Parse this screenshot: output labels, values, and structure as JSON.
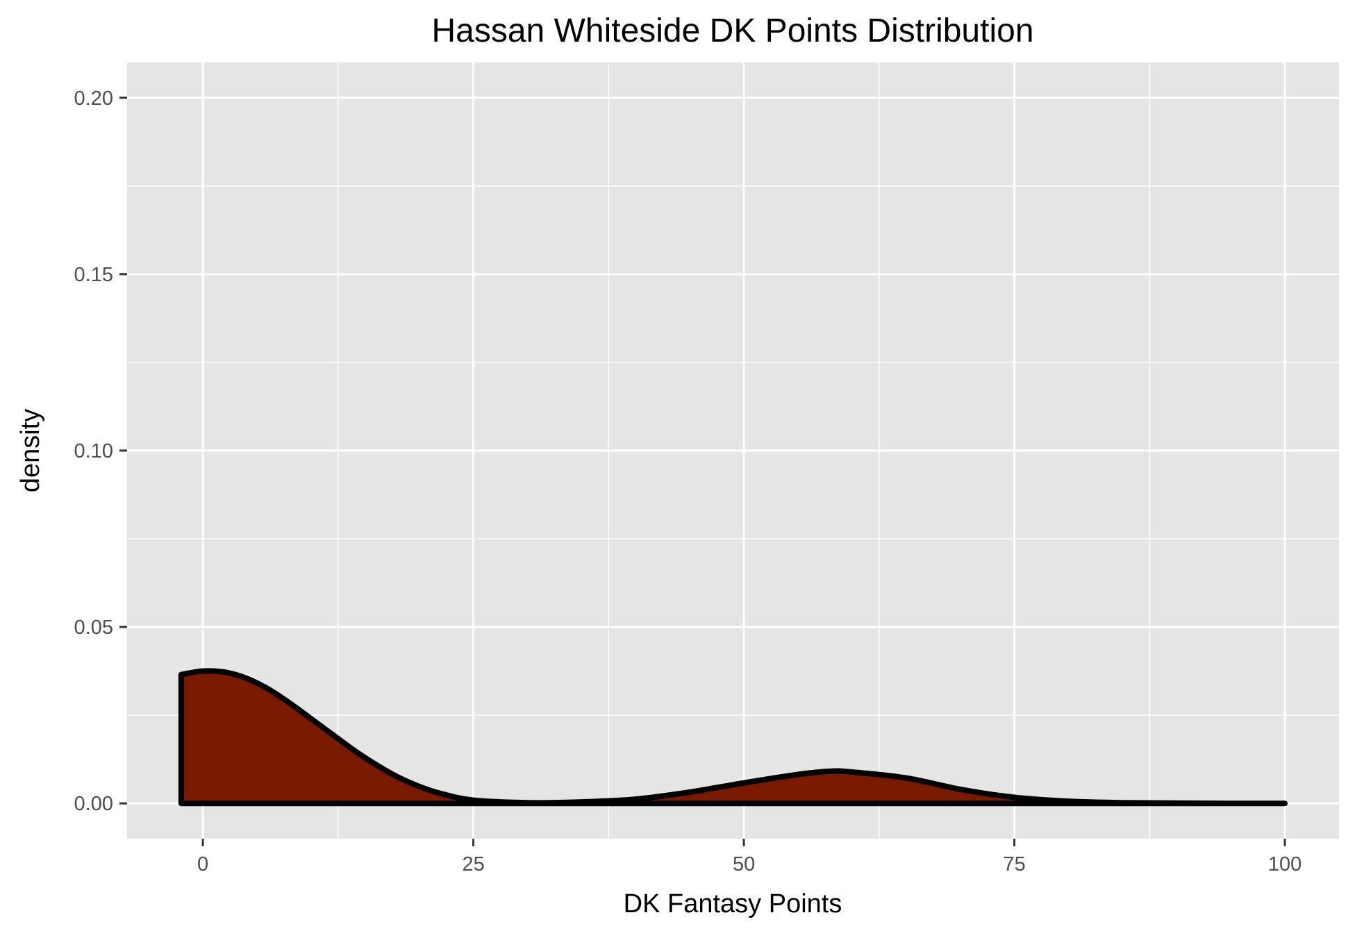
{
  "chart_data": {
    "type": "area",
    "title": "Hassan Whiteside DK Points Distribution",
    "xlabel": "DK Fantasy Points",
    "ylabel": "density",
    "xlim": [
      -7,
      105
    ],
    "ylim": [
      -0.01,
      0.21
    ],
    "x_ticks": [
      0,
      25,
      50,
      75,
      100
    ],
    "x_tick_labels": [
      "0",
      "25",
      "50",
      "75",
      "100"
    ],
    "y_ticks": [
      0.0,
      0.05,
      0.1,
      0.15,
      0.2
    ],
    "y_tick_labels": [
      "0.00",
      "0.05",
      "0.10",
      "0.15",
      "0.20"
    ],
    "grid": true,
    "colors": {
      "fill": "#771a00",
      "outline": "#000000",
      "panel": "#e5e5e5",
      "grid": "#ffffff"
    },
    "series": [
      {
        "x": [
          -2,
          0,
          2,
          4,
          6,
          8,
          10,
          12,
          14,
          16,
          18,
          20,
          22,
          25,
          30,
          35,
          40,
          45,
          50,
          55,
          58,
          60,
          65,
          70,
          75,
          80,
          85,
          90,
          95,
          100
        ],
        "y": [
          0.0365,
          0.0375,
          0.0372,
          0.0355,
          0.0325,
          0.0285,
          0.024,
          0.0195,
          0.015,
          0.011,
          0.0075,
          0.0048,
          0.0028,
          0.0009,
          0.0002,
          0.0004,
          0.0012,
          0.0032,
          0.0058,
          0.0082,
          0.0091,
          0.0089,
          0.0072,
          0.004,
          0.0017,
          0.0006,
          0.0002,
          0.0001,
          0.0,
          0.0
        ]
      }
    ]
  }
}
